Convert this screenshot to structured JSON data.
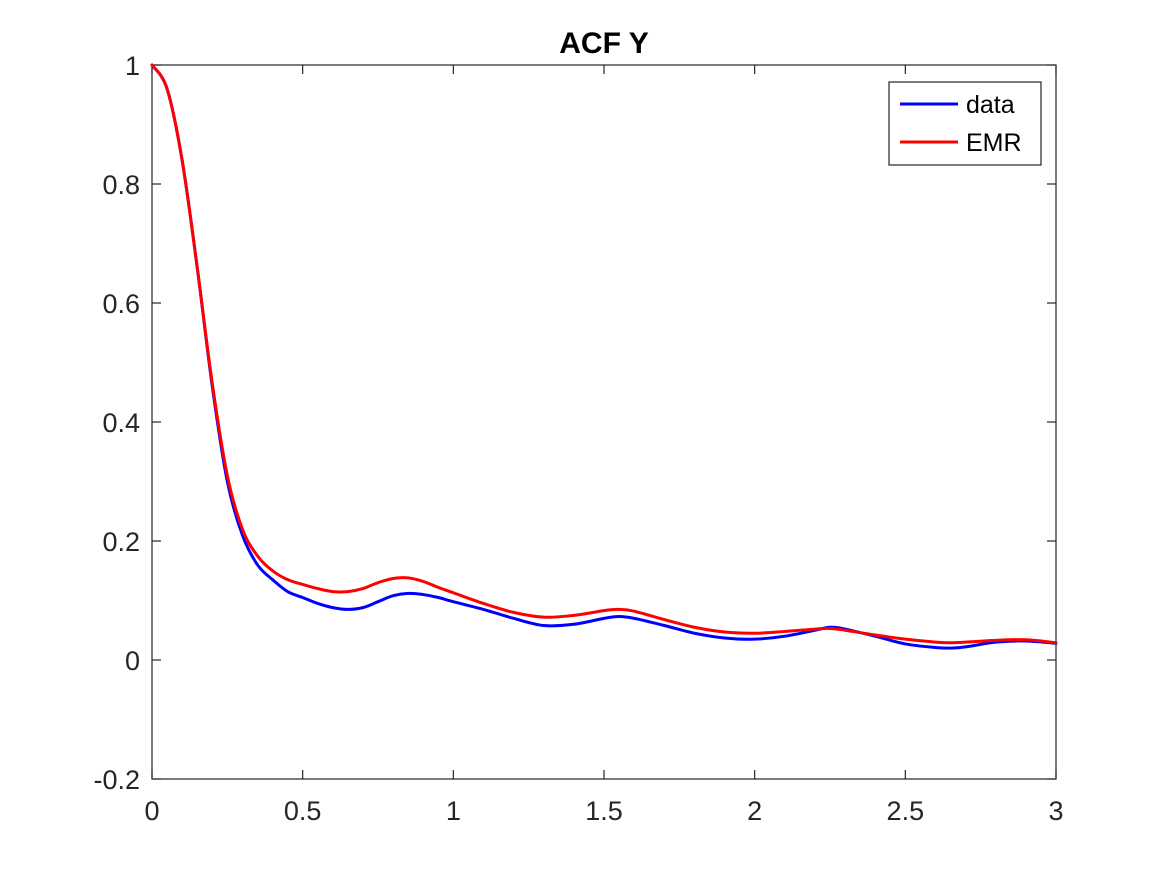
{
  "chart_data": {
    "type": "line",
    "title": "ACF Y",
    "xlabel": "",
    "ylabel": "",
    "xlim": [
      0,
      3
    ],
    "ylim": [
      -0.2,
      1
    ],
    "xticks": [
      0,
      0.5,
      1,
      1.5,
      2,
      2.5,
      3
    ],
    "xtick_labels": [
      "0",
      "0.5",
      "1",
      "1.5",
      "2",
      "2.5",
      "3"
    ],
    "yticks": [
      -0.2,
      0,
      0.2,
      0.4,
      0.6,
      0.8,
      1
    ],
    "ytick_labels": [
      "-0.2",
      "0",
      "0.2",
      "0.4",
      "0.6",
      "0.8",
      "1"
    ],
    "grid": false,
    "legend_position": "top-right",
    "series": [
      {
        "name": "data",
        "color": "#0000ff",
        "x": [
          0,
          0.05,
          0.1,
          0.15,
          0.2,
          0.25,
          0.3,
          0.35,
          0.4,
          0.45,
          0.5,
          0.55,
          0.6,
          0.65,
          0.7,
          0.75,
          0.8,
          0.85,
          0.9,
          0.95,
          1.0,
          1.1,
          1.2,
          1.3,
          1.4,
          1.5,
          1.55,
          1.6,
          1.7,
          1.8,
          1.9,
          2.0,
          2.1,
          2.2,
          2.25,
          2.3,
          2.4,
          2.5,
          2.6,
          2.65,
          2.7,
          2.8,
          2.9,
          3.0
        ],
        "y": [
          1.0,
          0.96,
          0.84,
          0.66,
          0.46,
          0.3,
          0.21,
          0.16,
          0.135,
          0.115,
          0.105,
          0.095,
          0.088,
          0.085,
          0.088,
          0.098,
          0.108,
          0.112,
          0.11,
          0.105,
          0.098,
          0.085,
          0.07,
          0.058,
          0.06,
          0.07,
          0.073,
          0.07,
          0.058,
          0.045,
          0.037,
          0.035,
          0.04,
          0.05,
          0.055,
          0.052,
          0.04,
          0.027,
          0.021,
          0.02,
          0.022,
          0.03,
          0.032,
          0.028
        ]
      },
      {
        "name": "EMR",
        "color": "#ff0000",
        "x": [
          0,
          0.05,
          0.1,
          0.15,
          0.2,
          0.25,
          0.3,
          0.35,
          0.4,
          0.45,
          0.5,
          0.55,
          0.6,
          0.65,
          0.7,
          0.75,
          0.8,
          0.85,
          0.9,
          0.95,
          1.0,
          1.1,
          1.2,
          1.3,
          1.4,
          1.5,
          1.55,
          1.6,
          1.7,
          1.8,
          1.9,
          2.0,
          2.1,
          2.2,
          2.25,
          2.3,
          2.4,
          2.5,
          2.6,
          2.65,
          2.7,
          2.8,
          2.9,
          3.0
        ],
        "y": [
          1.0,
          0.96,
          0.84,
          0.66,
          0.465,
          0.31,
          0.22,
          0.175,
          0.15,
          0.135,
          0.127,
          0.12,
          0.115,
          0.115,
          0.12,
          0.13,
          0.137,
          0.138,
          0.132,
          0.122,
          0.113,
          0.095,
          0.08,
          0.072,
          0.075,
          0.083,
          0.085,
          0.082,
          0.068,
          0.055,
          0.047,
          0.045,
          0.048,
          0.052,
          0.053,
          0.05,
          0.042,
          0.035,
          0.03,
          0.029,
          0.03,
          0.033,
          0.034,
          0.029
        ]
      }
    ]
  }
}
